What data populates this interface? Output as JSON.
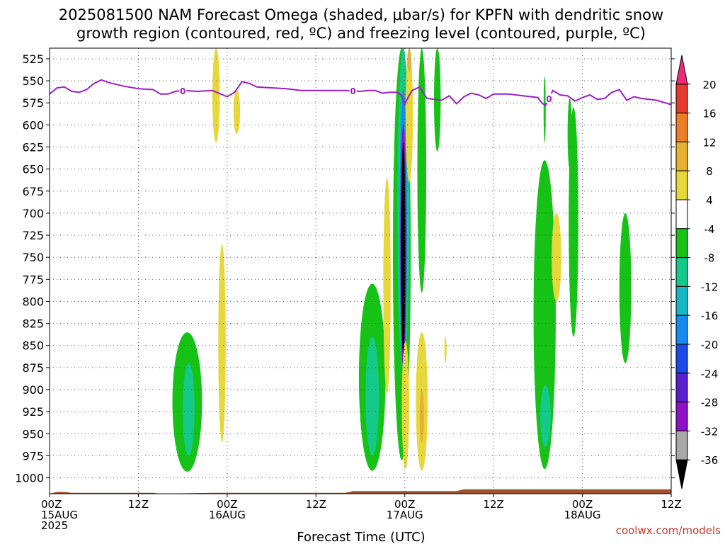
{
  "title_line1": "2025081500 NAM Forecast Omega (shaded, μbar/s) for KPFN with dendritic snow",
  "title_line2": "growth region (contoured, red, ºC) and freezing level (contoured, purple, ºC)",
  "credit": "coolwx.com/models",
  "colors": {
    "freezing_line": "#9b1fc7",
    "terrain": "#a0522d",
    "grid": "#555555",
    "credit": "#c0392b"
  },
  "chart_data": {
    "type": "heatmap",
    "xlabel": "Forecast Time (UTC)",
    "ylabel": "",
    "x_unit": "hours from 2025081500",
    "xlim": [
      0,
      84
    ],
    "y_scale": "pressure (inverted)",
    "ylim": [
      1018,
      513
    ],
    "y_ticks": [
      525,
      550,
      575,
      600,
      625,
      650,
      675,
      700,
      725,
      750,
      775,
      800,
      825,
      850,
      875,
      900,
      925,
      950,
      975,
      1000
    ],
    "x_ticks": [
      {
        "x": 0,
        "line1": "00Z",
        "line2": "15AUG",
        "line3": "2025"
      },
      {
        "x": 12,
        "line1": "12Z",
        "line2": "",
        "line3": ""
      },
      {
        "x": 24,
        "line1": "00Z",
        "line2": "16AUG",
        "line3": ""
      },
      {
        "x": 36,
        "line1": "12Z",
        "line2": "",
        "line3": ""
      },
      {
        "x": 48,
        "line1": "00Z",
        "line2": "17AUG",
        "line3": ""
      },
      {
        "x": 60,
        "line1": "12Z",
        "line2": "",
        "line3": ""
      },
      {
        "x": 72,
        "line1": "00Z",
        "line2": "18AUG",
        "line3": ""
      },
      {
        "x": 84,
        "line1": "12Z",
        "line2": "",
        "line3": ""
      }
    ],
    "colorbar": {
      "labels": [
        "20",
        "16",
        "12",
        "8",
        "4",
        "-4",
        "-8",
        "-12",
        "-16",
        "-20",
        "-24",
        "-28",
        "-32",
        "-36"
      ],
      "colors": [
        "#ee2a7b",
        "#e8392d",
        "#ec7e26",
        "#e8b030",
        "#e6d83a",
        "#ffffff",
        "#16c216",
        "#14c98a",
        "#16b8c6",
        "#168af0",
        "#1a4be8",
        "#5a1fd0",
        "#8e10c8",
        "#a8a8a8",
        "#000000"
      ]
    },
    "freezing_level": {
      "name": "0",
      "x": [
        0,
        1,
        2,
        3,
        4,
        5,
        6,
        7,
        8,
        10,
        12,
        14,
        15,
        16,
        17,
        18,
        20,
        22,
        24,
        25,
        26,
        27,
        28,
        30,
        32,
        34,
        36,
        38,
        40,
        42,
        43,
        44,
        45,
        46,
        47,
        47.5,
        48,
        48.5,
        49,
        50,
        51,
        52,
        53,
        54,
        55,
        56,
        57,
        58,
        59,
        60,
        62,
        64,
        66,
        66.5,
        67,
        67.5,
        68,
        69,
        70,
        71,
        72,
        73,
        74,
        75,
        76,
        77,
        78,
        79,
        80,
        82,
        84
      ],
      "y": [
        565,
        558,
        557,
        562,
        563,
        560,
        553,
        549,
        552,
        556,
        559,
        560,
        565,
        565,
        562,
        561,
        562,
        561,
        568,
        563,
        551,
        553,
        557,
        558,
        559,
        561,
        561,
        561,
        561,
        562,
        561,
        561,
        564,
        563,
        563,
        566,
        576,
        568,
        561,
        557,
        570,
        571,
        572,
        567,
        576,
        568,
        564,
        566,
        570,
        565,
        565,
        567,
        569,
        575,
        578,
        570,
        561,
        566,
        567,
        573,
        569,
        566,
        571,
        570,
        563,
        560,
        572,
        568,
        570,
        572,
        577
      ],
      "labels_at_x": [
        18,
        41,
        67.5
      ]
    },
    "omega_regions": [
      {
        "value_class": "4",
        "color": "#e6d83a",
        "x": 22.5,
        "top": 513,
        "bottom": 620,
        "w": 1.0
      },
      {
        "value_class": "4",
        "color": "#e6d83a",
        "x": 25.3,
        "top": 560,
        "bottom": 610,
        "w": 0.9
      },
      {
        "value_class": "4",
        "color": "#e6d83a",
        "x": 23.3,
        "top": 735,
        "bottom": 960,
        "w": 1.0
      },
      {
        "value_class": "-8",
        "color": "#16c216",
        "x": 18.6,
        "top": 835,
        "bottom": 993,
        "w": 4.0
      },
      {
        "value_class": "-12",
        "color": "#14c98a",
        "x": 18.8,
        "top": 870,
        "bottom": 975,
        "w": 1.6
      },
      {
        "value_class": "-8",
        "color": "#16c216",
        "x": 43.6,
        "top": 780,
        "bottom": 992,
        "w": 3.6
      },
      {
        "value_class": "-12",
        "color": "#14c98a",
        "x": 43.6,
        "top": 840,
        "bottom": 975,
        "w": 1.8
      },
      {
        "value_class": "4",
        "color": "#e6d83a",
        "x": 45.6,
        "top": 660,
        "bottom": 905,
        "w": 1.0
      },
      {
        "value_class": "-8",
        "color": "#16c216",
        "x": 47.6,
        "top": 513,
        "bottom": 980,
        "w": 2.4
      },
      {
        "value_class": "-12",
        "color": "#14c98a",
        "x": 47.8,
        "top": 513,
        "bottom": 880,
        "w": 1.6
      },
      {
        "value_class": "-16",
        "color": "#168af0",
        "x": 47.8,
        "top": 560,
        "bottom": 880,
        "w": 1.0
      },
      {
        "value_class": "-28",
        "color": "#8e10c8",
        "x": 47.8,
        "top": 600,
        "bottom": 875,
        "w": 0.8
      },
      {
        "value_class": "-36",
        "color": "#000000",
        "x": 47.8,
        "top": 620,
        "bottom": 860,
        "w": 0.55
      },
      {
        "value_class": "4",
        "color": "#e6d83a",
        "x": 48.6,
        "top": 513,
        "bottom": 665,
        "w": 1.0
      },
      {
        "value_class": "8",
        "color": "#e8b030",
        "x": 48.6,
        "top": 513,
        "bottom": 540,
        "w": 0.5
      },
      {
        "value_class": "4",
        "color": "#e6d83a",
        "x": 48.1,
        "top": 845,
        "bottom": 990,
        "w": 1.0
      },
      {
        "value_class": "-8",
        "color": "#16c216",
        "x": 50.3,
        "top": 513,
        "bottom": 790,
        "w": 1.2
      },
      {
        "value_class": "4",
        "color": "#e6d83a",
        "x": 50.3,
        "top": 835,
        "bottom": 992,
        "w": 1.6
      },
      {
        "value_class": "8",
        "color": "#e8b030",
        "x": 50.3,
        "top": 900,
        "bottom": 960,
        "w": 0.6
      },
      {
        "value_class": "-8",
        "color": "#16c216",
        "x": 52.4,
        "top": 513,
        "bottom": 630,
        "w": 0.9
      },
      {
        "value_class": "4",
        "color": "#e6d83a",
        "x": 53.5,
        "top": 840,
        "bottom": 870,
        "w": 0.3
      },
      {
        "value_class": "-8",
        "color": "#16c216",
        "x": 66.9,
        "top": 545,
        "bottom": 620,
        "w": 0.2
      },
      {
        "value_class": "-8",
        "color": "#16c216",
        "x": 66.9,
        "top": 640,
        "bottom": 990,
        "w": 3.0
      },
      {
        "value_class": "-12",
        "color": "#14c98a",
        "x": 67.0,
        "top": 895,
        "bottom": 965,
        "w": 1.4
      },
      {
        "value_class": "4",
        "color": "#e6d83a",
        "x": 68.5,
        "top": 700,
        "bottom": 800,
        "w": 1.3
      },
      {
        "value_class": "-8",
        "color": "#16c216",
        "x": 70.8,
        "top": 580,
        "bottom": 840,
        "w": 1.3
      },
      {
        "value_class": "-8",
        "color": "#16c216",
        "x": 70.3,
        "top": 570,
        "bottom": 650,
        "w": 0.6
      },
      {
        "value_class": "-8",
        "color": "#16c216",
        "x": 77.8,
        "top": 700,
        "bottom": 870,
        "w": 1.6
      }
    ],
    "terrain": {
      "name": "surface",
      "x": [
        0,
        1,
        2,
        3,
        14,
        15,
        22,
        40,
        41,
        48,
        55,
        56,
        84
      ],
      "y": [
        1018,
        1016,
        1016,
        1017,
        1017,
        1018,
        1017,
        1017,
        1015,
        1015,
        1015,
        1013,
        1013
      ]
    }
  }
}
